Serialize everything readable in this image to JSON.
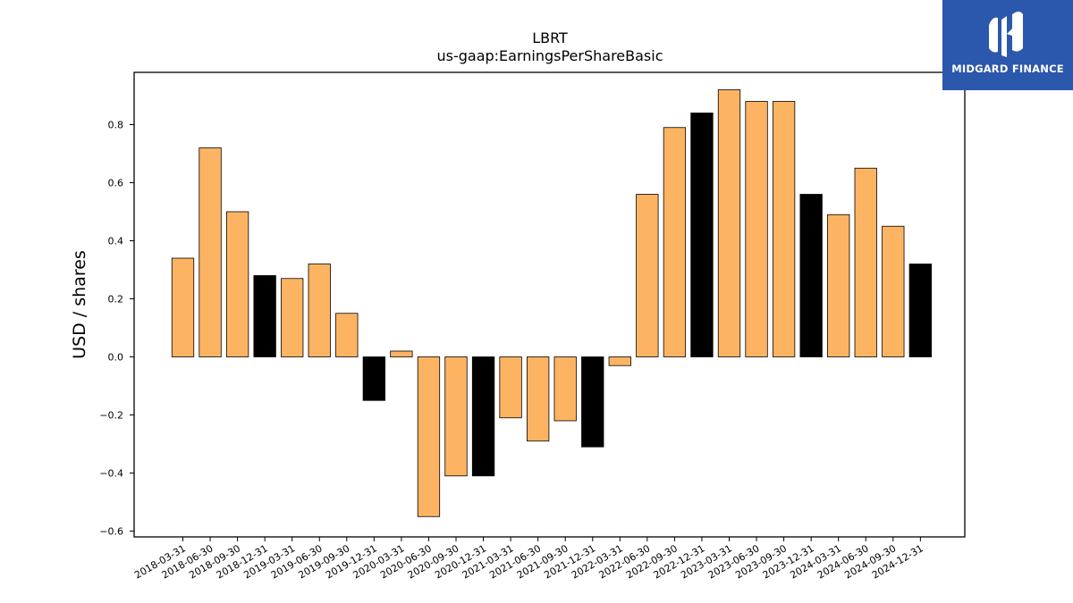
{
  "branding": {
    "logo_text": "MIDGARD FINANCE",
    "logo_bg": "#2b57ad"
  },
  "chart_data": {
    "type": "bar",
    "title": "LBRT",
    "subtitle": "us-gaap:EarningsPerShareBasic",
    "xlabel": "",
    "ylabel": "USD / shares",
    "ylim": [
      -0.62,
      0.98
    ],
    "yticks": [
      -0.6,
      -0.4,
      -0.2,
      0.0,
      0.2,
      0.4,
      0.6,
      0.8
    ],
    "grid": false,
    "colors": {
      "quarterly": "#fdb462",
      "annual": "#000000"
    },
    "categories": [
      "2018-03-31",
      "2018-06-30",
      "2018-09-30",
      "2018-12-31",
      "2019-03-31",
      "2019-06-30",
      "2019-09-30",
      "2019-12-31",
      "2020-03-31",
      "2020-06-30",
      "2020-09-30",
      "2020-12-31",
      "2021-03-31",
      "2021-06-30",
      "2021-09-30",
      "2021-12-31",
      "2022-03-31",
      "2022-06-30",
      "2022-09-30",
      "2022-12-31",
      "2023-03-31",
      "2023-06-30",
      "2023-09-30",
      "2023-12-31",
      "2024-03-31",
      "2024-06-30",
      "2024-09-30",
      "2024-12-31"
    ],
    "values": [
      0.34,
      0.72,
      0.5,
      0.28,
      0.27,
      0.32,
      0.15,
      -0.15,
      0.02,
      -0.55,
      -0.41,
      -0.41,
      -0.21,
      -0.29,
      -0.22,
      -0.31,
      -0.03,
      0.56,
      0.79,
      0.84,
      0.92,
      0.88,
      0.88,
      0.56,
      0.49,
      0.65,
      0.45,
      0.32
    ],
    "highlight": [
      false,
      false,
      false,
      true,
      false,
      false,
      false,
      true,
      false,
      false,
      false,
      true,
      false,
      false,
      false,
      true,
      false,
      false,
      false,
      true,
      false,
      false,
      false,
      true,
      false,
      false,
      false,
      true
    ]
  }
}
